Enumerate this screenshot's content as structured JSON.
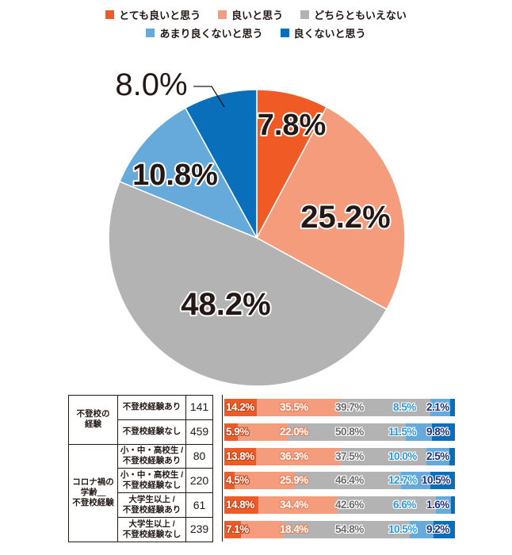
{
  "legend": {
    "row1": [
      {
        "label": "とても良いと思う",
        "color": "#f05a24"
      },
      {
        "label": "良いと思う",
        "color": "#f59c7d"
      },
      {
        "label": "どちらともいえない",
        "color": "#b3b3b3"
      }
    ],
    "row2": [
      {
        "label": "あまり良くないと思う",
        "color": "#65aadb"
      },
      {
        "label": "良くないと思う",
        "color": "#0a6fbb"
      }
    ]
  },
  "chart_data": [
    {
      "type": "pie",
      "title": "",
      "categories": [
        "とても良いと思う",
        "良いと思う",
        "どちらともいえない",
        "あまり良くないと思う",
        "良くないと思う"
      ],
      "values": [
        7.8,
        25.2,
        48.2,
        10.8,
        8.0
      ],
      "labels": [
        "7.8%",
        "25.2%",
        "48.2%",
        "10.8%",
        "8.0%"
      ],
      "colors": [
        "#f05a24",
        "#f59c7d",
        "#b3b3b3",
        "#65aadb",
        "#0a6fbb"
      ],
      "start_angle": "top, clockwise",
      "legend_position": "top"
    },
    {
      "type": "bar",
      "orientation": "horizontal",
      "stacked": "100%",
      "categories": [
        "不登校の経験 / 不登校経験あり",
        "不登校の経験 / 不登校経験なし",
        "コロナ禍の学齢_不登校経験 / 小・中・高校生 / 不登校経験あり",
        "コロナ禍の学齢_不登校経験 / 小・中・高校生 / 不登校経験なし",
        "コロナ禍の学齢_不登校経験 / 大学生以上 / 不登校経験あり",
        "コロナ禍の学齢_不登校経験 / 大学生以上 / 不登校経験なし"
      ],
      "n": [
        141,
        459,
        80,
        220,
        61,
        239
      ],
      "series": [
        {
          "name": "とても良いと思う",
          "values": [
            14.2,
            5.9,
            13.8,
            4.5,
            14.8,
            7.1
          ]
        },
        {
          "name": "良いと思う",
          "values": [
            35.5,
            22.0,
            36.3,
            25.9,
            34.4,
            18.4
          ]
        },
        {
          "name": "どちらともいえない",
          "values": [
            39.7,
            50.8,
            37.5,
            46.4,
            42.6,
            54.8
          ]
        },
        {
          "name": "あまり良くないと思う",
          "values": [
            8.5,
            11.5,
            10.0,
            12.7,
            6.6,
            10.5
          ]
        },
        {
          "name": "良くないと思う",
          "values": [
            2.1,
            9.8,
            2.5,
            10.5,
            1.6,
            9.2
          ]
        }
      ]
    }
  ],
  "table": {
    "groups": [
      {
        "label_lines": [
          "不登校の",
          "経験"
        ],
        "rows": [
          {
            "sub_lines": [
              "不登校経験あり"
            ],
            "n": "141"
          },
          {
            "sub_lines": [
              "不登校経験なし"
            ],
            "n": "459"
          }
        ]
      },
      {
        "label_lines": [
          "コロナ禍の",
          "学齢＿",
          "不登校経験"
        ],
        "rows": [
          {
            "sub_lines": [
              "小・中・高校生 /",
              "不登校経験あり"
            ],
            "n": "80"
          },
          {
            "sub_lines": [
              "小・中・高校生 /",
              "不登校経験なし"
            ],
            "n": "220"
          },
          {
            "sub_lines": [
              "大学生以上 /",
              "不登校経験あり"
            ],
            "n": "61"
          },
          {
            "sub_lines": [
              "大学生以上 /",
              "不登校経験なし"
            ],
            "n": "239"
          }
        ]
      }
    ]
  },
  "bar_label_styles": [
    {
      "fill": "#ffffff",
      "stroke": "#c9451a"
    },
    {
      "fill": "#ffffff",
      "stroke": "#e8835f"
    },
    {
      "fill": "#6b6b6b",
      "stroke": "#ffffff"
    },
    {
      "fill": "#2a9ae0",
      "stroke": "#ffffff"
    },
    {
      "fill": "#1d2f7a",
      "stroke": "#ffffff"
    }
  ]
}
